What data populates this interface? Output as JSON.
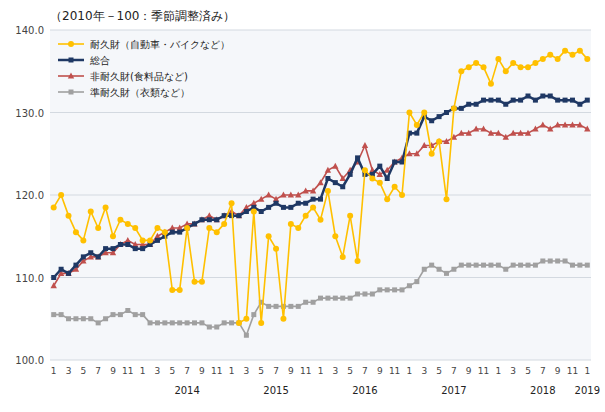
{
  "chart_data": {
    "type": "line",
    "title": "（2010年－100：季節調整済み）",
    "categories": [
      "1",
      null,
      "3",
      null,
      "5",
      null,
      "7",
      null,
      "9",
      null,
      "11",
      null,
      "1",
      null,
      "3",
      null,
      "5",
      null,
      "7",
      null,
      "9",
      null,
      "11",
      null,
      "1",
      null,
      "3",
      null,
      "5",
      null,
      "7",
      null,
      "9",
      null,
      "11",
      null,
      "1",
      null,
      "3",
      null,
      "5",
      null,
      "7",
      null,
      "9",
      null,
      "11",
      null,
      "1",
      null,
      "3",
      null,
      "5",
      null,
      "7",
      null,
      "9",
      null,
      "11",
      null,
      "1",
      null,
      "3",
      null,
      "5",
      null,
      "7",
      null,
      "9",
      null,
      "11",
      null,
      "1"
    ],
    "annotations": [
      {
        "text": "2014",
        "x": 18
      },
      {
        "text": "2015",
        "x": 30
      },
      {
        "text": "2016",
        "x": 42
      },
      {
        "text": "2017",
        "x": 54
      },
      {
        "text": "2018",
        "x": 66
      },
      {
        "text": "2019",
        "x": 72
      }
    ],
    "ylim": [
      100.0,
      140.0
    ],
    "yticks": [
      {
        "value": 100.0,
        "label": "100.0"
      },
      {
        "value": 110.0,
        "label": "110.0"
      },
      {
        "value": 120.0,
        "label": "120.0"
      },
      {
        "value": 130.0,
        "label": "130.0"
      },
      {
        "value": 140.0,
        "label": "140.0"
      }
    ],
    "grid": true,
    "legend": "upper left",
    "series": [
      {
        "name": "耐久財（自動車・バイクなど）",
        "color": "#FFC000",
        "marker": "circle",
        "values": [
          118.5,
          120.0,
          117.5,
          115.5,
          114.5,
          118.0,
          116.0,
          118.5,
          115.0,
          117.0,
          116.5,
          116.0,
          114.5,
          114.5,
          116.0,
          115.5,
          108.5,
          108.5,
          116.0,
          109.5,
          109.5,
          116.0,
          115.5,
          116.5,
          119.0,
          104.5,
          105.0,
          118.0,
          104.5,
          115.0,
          113.5,
          105.0,
          116.5,
          116.0,
          117.5,
          118.5,
          117.0,
          120.5,
          115.0,
          112.5,
          117.5,
          112.0,
          123.0,
          122.0,
          121.5,
          119.5,
          121.0,
          120.0,
          130.0,
          128.5,
          130.0,
          125.0,
          126.5,
          119.5,
          130.5,
          135.0,
          135.5,
          136.0,
          135.5,
          133.5,
          136.5,
          135.0,
          136.0,
          135.5,
          135.5,
          136.0,
          136.5,
          137.0,
          136.5,
          137.5,
          137.0,
          137.5,
          136.5
        ]
      },
      {
        "name": "総合",
        "color": "#1F3864",
        "marker": "square",
        "values": [
          110.0,
          111.0,
          110.5,
          111.5,
          112.5,
          113.0,
          112.5,
          113.5,
          113.5,
          114.0,
          114.0,
          113.5,
          113.5,
          114.0,
          114.5,
          115.0,
          115.5,
          115.5,
          116.0,
          116.5,
          117.0,
          117.0,
          117.0,
          117.5,
          117.5,
          117.5,
          118.0,
          118.5,
          118.0,
          118.5,
          119.0,
          118.5,
          118.5,
          119.0,
          119.0,
          119.5,
          119.5,
          122.0,
          121.5,
          121.0,
          122.5,
          124.5,
          122.5,
          122.5,
          123.5,
          122.0,
          124.0,
          124.0,
          127.5,
          127.5,
          129.5,
          129.0,
          129.5,
          130.0,
          130.5,
          130.5,
          131.0,
          131.0,
          131.5,
          131.5,
          131.5,
          131.0,
          131.5,
          131.5,
          132.0,
          131.5,
          132.0,
          132.0,
          131.5,
          131.5,
          131.5,
          131.0,
          131.5
        ]
      },
      {
        "name": "非耐久財(食料品など)",
        "color": "#C0504D",
        "marker": "triangle",
        "values": [
          109.0,
          110.5,
          110.5,
          111.0,
          112.0,
          112.5,
          112.5,
          113.0,
          113.0,
          114.0,
          114.5,
          114.0,
          114.0,
          114.0,
          115.0,
          115.5,
          116.0,
          116.0,
          116.5,
          116.5,
          117.0,
          117.5,
          117.0,
          117.5,
          118.0,
          117.5,
          118.5,
          119.0,
          119.5,
          120.0,
          119.5,
          120.0,
          120.0,
          120.0,
          120.5,
          120.5,
          121.5,
          123.0,
          123.5,
          122.0,
          123.0,
          124.0,
          126.0,
          123.0,
          122.5,
          123.0,
          124.0,
          124.5,
          125.0,
          125.0,
          126.0,
          126.0,
          126.5,
          126.5,
          127.0,
          127.5,
          127.5,
          128.0,
          128.0,
          127.5,
          127.5,
          127.0,
          127.5,
          127.5,
          127.5,
          128.0,
          128.5,
          128.0,
          128.5,
          128.5,
          128.5,
          128.5,
          128.0
        ]
      },
      {
        "name": "準耐久財（衣類など）",
        "color": "#A0A0A0",
        "marker": "square",
        "values": [
          105.5,
          105.5,
          105.0,
          105.0,
          105.0,
          105.0,
          104.5,
          105.0,
          105.5,
          105.5,
          106.0,
          105.5,
          105.5,
          104.5,
          104.5,
          104.5,
          104.5,
          104.5,
          104.5,
          104.5,
          104.5,
          104.0,
          104.0,
          104.5,
          104.5,
          104.5,
          103.0,
          105.5,
          107.0,
          106.5,
          106.5,
          106.5,
          106.5,
          106.5,
          107.0,
          107.0,
          107.5,
          107.5,
          107.5,
          107.5,
          107.5,
          108.0,
          108.0,
          108.0,
          108.5,
          108.5,
          108.5,
          108.5,
          109.0,
          109.5,
          111.0,
          111.5,
          111.0,
          110.5,
          111.0,
          111.5,
          111.5,
          111.5,
          111.5,
          111.5,
          111.5,
          111.0,
          111.5,
          111.5,
          111.5,
          111.5,
          112.0,
          112.0,
          112.0,
          112.0,
          111.5,
          111.5,
          111.5
        ]
      }
    ]
  }
}
